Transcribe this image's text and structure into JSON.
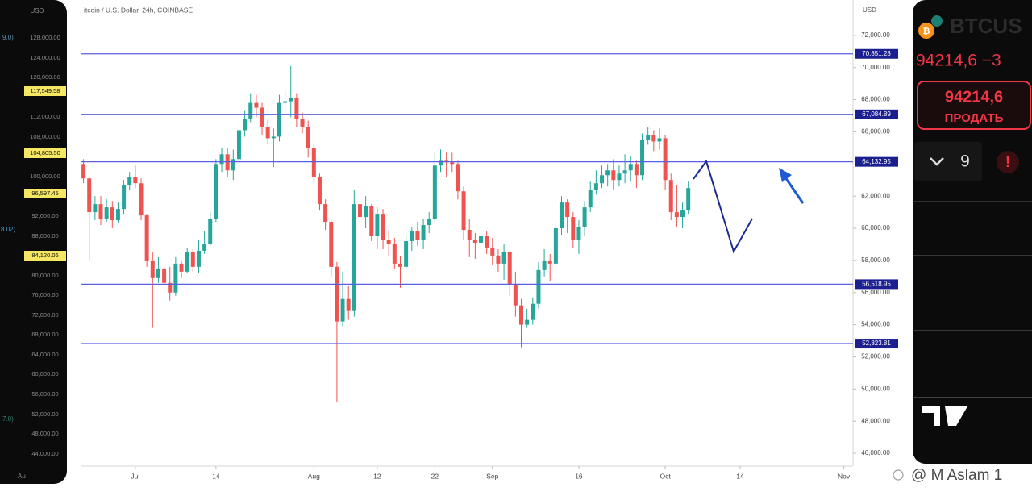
{
  "chart_data": {
    "type": "candlestick",
    "title": "itcoin / U.S. Dollar, 24h, COINBASE",
    "currency": "USD",
    "x": [
      -9,
      -8,
      -7,
      -6,
      -5,
      -4,
      -3,
      -2,
      -1,
      0,
      1,
      2,
      3,
      4,
      5,
      6,
      7,
      8,
      9,
      10,
      11,
      12,
      13,
      14,
      15,
      16,
      17,
      18,
      19,
      20,
      21,
      22,
      23,
      24,
      25,
      26,
      27,
      28,
      29,
      30,
      31,
      32,
      33,
      34,
      35,
      36,
      37,
      38,
      39,
      40,
      41,
      42,
      43,
      44,
      45,
      46,
      47,
      48,
      49,
      50,
      51,
      52,
      53,
      54,
      55,
      56,
      57,
      58,
      59,
      60,
      61,
      62,
      63,
      64,
      65,
      66,
      67,
      68,
      69,
      70,
      71,
      72,
      73,
      74,
      75,
      76,
      77,
      78,
      79,
      80,
      81,
      82,
      83,
      84,
      85,
      86,
      87,
      88,
      89,
      90,
      91,
      92,
      93,
      94,
      95,
      96
    ],
    "open": [
      64000,
      63100,
      61000,
      61500,
      60600,
      61300,
      60500,
      61200,
      62700,
      63200,
      62800,
      60800,
      58000,
      56900,
      57500,
      56600,
      56000,
      57800,
      57300,
      58500,
      57600,
      58600,
      59000,
      60600,
      64000,
      64600,
      63600,
      64300,
      66100,
      66800,
      67800,
      67500,
      66300,
      65600,
      65700,
      67800,
      67900,
      68100,
      66800,
      66300,
      65000,
      63200,
      61500,
      60400,
      57600,
      54200,
      55600,
      54900,
      61500,
      60700,
      61400,
      59500,
      60900,
      59300,
      59000,
      57800,
      57600,
      59200,
      59800,
      59300,
      60200,
      60600,
      63900,
      64200,
      64100,
      64000,
      62300,
      59900,
      59300,
      59100,
      59500,
      58800,
      58300,
      57800,
      58500,
      56500,
      55200,
      54000,
      54300,
      55300,
      57400,
      58000,
      57800,
      60000,
      61600,
      60700,
      59300,
      60100,
      61300,
      62400,
      62800,
      63300,
      63600,
      63000,
      63400,
      63600,
      64000,
      63300,
      65500,
      65800,
      65400,
      65600,
      63000,
      61000,
      60700,
      61100
    ],
    "high": [
      64300,
      63200,
      62000,
      62000,
      61800,
      61700,
      61600,
      63000,
      63500,
      63900,
      63100,
      60900,
      58500,
      58200,
      57700,
      57600,
      58200,
      58000,
      58800,
      58700,
      59300,
      59800,
      61000,
      64300,
      65000,
      65000,
      64900,
      66600,
      67300,
      68400,
      68300,
      67800,
      66800,
      66200,
      68300,
      68600,
      70100,
      68400,
      67200,
      66700,
      65300,
      63400,
      61800,
      60500,
      57900,
      57300,
      56400,
      62400,
      61800,
      62000,
      61500,
      61300,
      61200,
      59900,
      59400,
      58300,
      59600,
      60100,
      60400,
      60600,
      61000,
      64800,
      64900,
      64700,
      64700,
      64200,
      62600,
      60600,
      59700,
      59900,
      59800,
      59400,
      58700,
      59000,
      58600,
      57300,
      55600,
      55000,
      55700,
      57900,
      58700,
      58400,
      60300,
      62000,
      61800,
      61000,
      60500,
      61700,
      62900,
      63600,
      63900,
      64000,
      64300,
      63900,
      64600,
      64500,
      64200,
      65900,
      66300,
      66100,
      66200,
      65800,
      63400,
      62700,
      61600,
      62900
    ],
    "low": [
      62800,
      58000,
      60500,
      60200,
      60400,
      60000,
      60300,
      60900,
      62400,
      62500,
      60500,
      57600,
      53800,
      56600,
      56200,
      55500,
      55800,
      56900,
      57200,
      57300,
      57200,
      58400,
      58900,
      60400,
      63500,
      63200,
      63000,
      64000,
      65700,
      66600,
      66900,
      65800,
      65200,
      63800,
      65400,
      67300,
      66900,
      66300,
      65900,
      64400,
      62800,
      61100,
      59900,
      57000,
      49200,
      53900,
      54300,
      54500,
      60100,
      60000,
      59200,
      58700,
      58700,
      58300,
      57500,
      56300,
      57400,
      58600,
      58900,
      58700,
      59700,
      60400,
      63500,
      63200,
      63500,
      61800,
      59300,
      58200,
      58100,
      58700,
      58400,
      57700,
      57300,
      56800,
      55800,
      54500,
      52600,
      53800,
      54000,
      55000,
      57000,
      56700,
      57600,
      59600,
      59700,
      58800,
      58400,
      59500,
      61000,
      62100,
      62500,
      62600,
      62400,
      62600,
      62800,
      62900,
      62500,
      63000,
      65200,
      64800,
      64900,
      62400,
      60500,
      60100,
      60000,
      60900
    ],
    "close": [
      63100,
      61000,
      61500,
      60600,
      61300,
      60500,
      61200,
      62700,
      63200,
      62800,
      60800,
      58000,
      56900,
      57500,
      56600,
      56000,
      57800,
      57300,
      58500,
      57600,
      58600,
      59000,
      60600,
      64000,
      64600,
      63600,
      64300,
      66100,
      66800,
      67800,
      67500,
      66300,
      65600,
      65700,
      67800,
      67900,
      68100,
      66800,
      66300,
      65000,
      63200,
      61500,
      60400,
      57600,
      54200,
      55600,
      54900,
      61500,
      60700,
      61400,
      59500,
      60900,
      59300,
      59000,
      57800,
      57600,
      59200,
      59800,
      59300,
      60200,
      60600,
      63900,
      64200,
      64100,
      64000,
      62300,
      59900,
      59300,
      59100,
      59500,
      58800,
      58300,
      57800,
      58500,
      56500,
      55200,
      54000,
      54300,
      55300,
      57400,
      58000,
      57800,
      60000,
      61600,
      60700,
      59300,
      60100,
      61300,
      62400,
      62800,
      63300,
      63600,
      63000,
      63400,
      63600,
      64000,
      63300,
      65500,
      65800,
      65400,
      65600,
      63000,
      61000,
      60700,
      61100,
      62500
    ],
    "up_color": "#26a69a",
    "down_color": "#ef5350",
    "xlim": [
      -9.5,
      124.6
    ],
    "xticks": [
      {
        "value": 0,
        "label": "Jul"
      },
      14,
      {
        "value": 31,
        "label": "Aug"
      },
      {
        "value": 42,
        "label": "12"
      },
      {
        "value": 52,
        "label": "22"
      },
      {
        "value": 62,
        "label": "Sep"
      },
      {
        "value": 77,
        "label": "16"
      },
      {
        "value": 92,
        "label": "Oct"
      },
      {
        "value": 105,
        "label": "14"
      },
      {
        "value": 123,
        "label": "Nov"
      }
    ],
    "ylim": [
      45200,
      74000
    ],
    "yticks": [
      {
        "value": 72000,
        "label": "72,000.00"
      },
      {
        "value": 70000,
        "label": "70,000.00"
      },
      {
        "value": 68000,
        "label": "68,000.00"
      },
      {
        "value": 66000,
        "label": "66,000.00"
      },
      {
        "value": 62000,
        "label": "62,000.00"
      },
      {
        "value": 60000,
        "label": "60,000.00"
      },
      {
        "value": 58000,
        "label": "58,000.00"
      },
      {
        "value": 56000,
        "label": "56,000.00"
      },
      {
        "value": 54000,
        "label": "54,000.00"
      },
      {
        "value": 52000,
        "label": "52,000.00"
      },
      {
        "value": 50000,
        "label": "50,000.00"
      },
      {
        "value": 48000,
        "label": "48,000.00"
      },
      {
        "value": 46000,
        "label": "46,000.00"
      }
    ],
    "levels": [
      {
        "value": 70851.28,
        "label": "70,851.28"
      },
      {
        "value": 67084.89,
        "label": "67,084.89"
      },
      {
        "value": 64132.95,
        "label": "64,132.95"
      },
      {
        "value": 56518.95,
        "label": "56,518.95"
      },
      {
        "value": 52823.81,
        "label": "52,823.81"
      }
    ],
    "level_color": "#5b5fe3"
  },
  "left_panel": {
    "currency": "USD",
    "price_labels": [
      {
        "text": "128,000.00",
        "highlight": false
      },
      {
        "text": "124,000.00",
        "highlight": false
      },
      {
        "text": "120,000.00",
        "highlight": false
      },
      {
        "text": "117,549.58",
        "highlight": true
      },
      {
        "text": "112,000.00",
        "highlight": false
      },
      {
        "text": "108,000.00",
        "highlight": false
      },
      {
        "text": "104,805.50",
        "highlight": true
      },
      {
        "text": "100,000.00",
        "highlight": false
      },
      {
        "text": "96,597.45",
        "highlight": true
      },
      {
        "text": "92,000.00",
        "highlight": false
      },
      {
        "text": "88,000.00",
        "highlight": false
      },
      {
        "text": "84,120.06",
        "highlight": true
      },
      {
        "text": "80,000.00",
        "highlight": false
      },
      {
        "text": "76,000.00",
        "highlight": false
      },
      {
        "text": "72,000.00",
        "highlight": false
      },
      {
        "text": "68,000.00",
        "highlight": false
      },
      {
        "text": "64,000.00",
        "highlight": false
      },
      {
        "text": "60,000.00",
        "highlight": false
      },
      {
        "text": "56,000.00",
        "highlight": false
      },
      {
        "text": "52,000.00",
        "highlight": false
      },
      {
        "text": "48,000.00",
        "highlight": false
      },
      {
        "text": "44,000.00",
        "highlight": false
      }
    ],
    "side_labels": [
      "9.0)",
      "8.02)",
      "7.0)"
    ],
    "date_label": "Au"
  },
  "right_panel": {
    "symbol": "BTCUS",
    "price_change": "94214,6 −3",
    "sell_price": "94214,6",
    "sell_label": "ПРОДАТЬ",
    "quantity": "9",
    "alert": "!"
  },
  "watermark": "@ M Aslam 1"
}
